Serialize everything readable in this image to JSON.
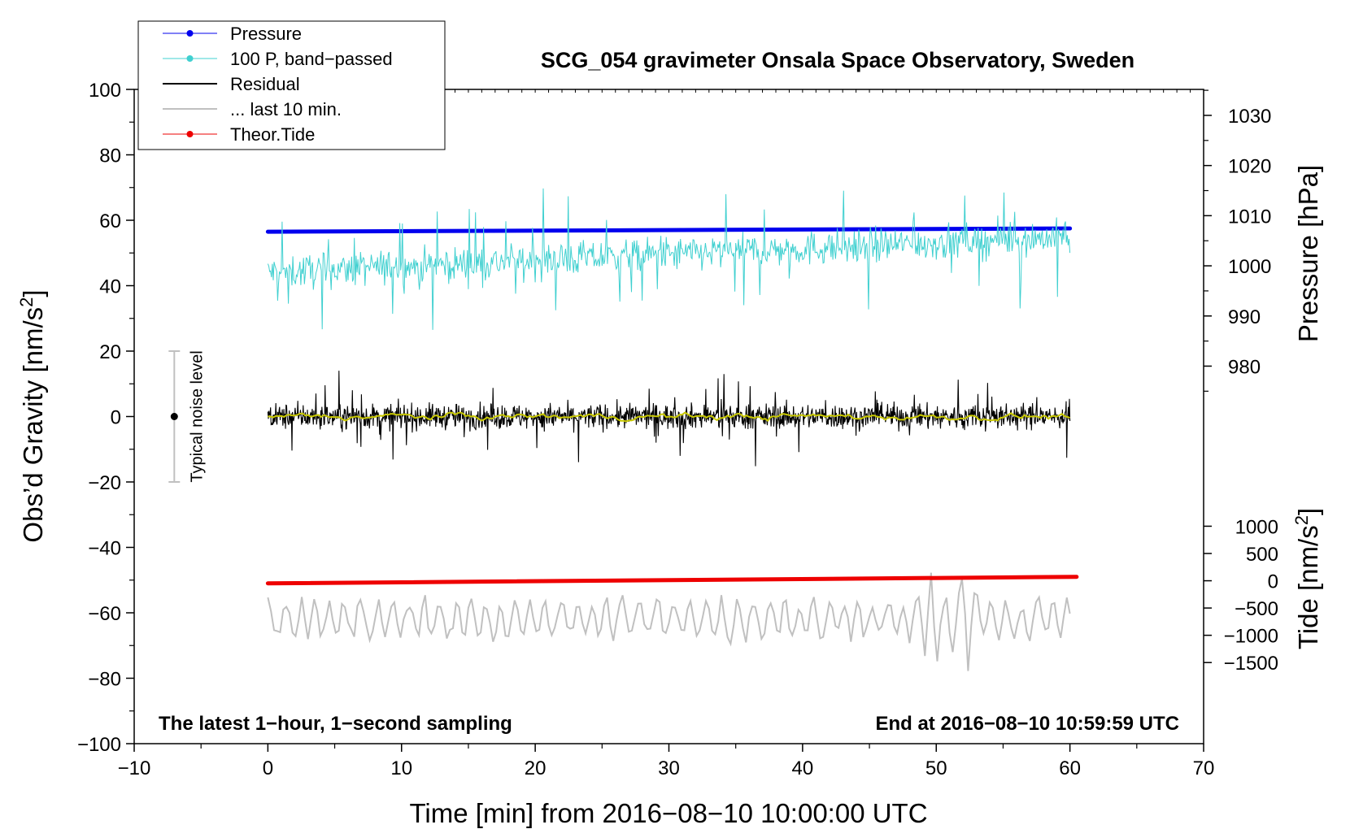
{
  "chart_data": {
    "type": "line",
    "title": "SCG_054 gravimeter Onsala Space Observatory, Sweden",
    "xlabel": "Time [min] from 2016−08−10 10:00:00 UTC",
    "ylabel_main": "Obs’d Gravity [nm/s",
    "ylabel_main_sup": "2",
    "ylabel_main_close": "]",
    "ylabel_pressure": "Pressure [hPa]",
    "ylabel_tide": "Tide [nm/s",
    "ylabel_tide_sup": "2",
    "ylabel_tide_close": "]",
    "xlim": [
      -10,
      70
    ],
    "ylim": [
      -100,
      100
    ],
    "x_ticks": [
      {
        "value": -10,
        "label": "−10"
      },
      {
        "value": 0,
        "label": "0"
      },
      {
        "value": 10,
        "label": "10"
      },
      {
        "value": 20,
        "label": "20"
      },
      {
        "value": 30,
        "label": "30"
      },
      {
        "value": 40,
        "label": "40"
      },
      {
        "value": 50,
        "label": "50"
      },
      {
        "value": 60,
        "label": "60"
      },
      {
        "value": 70,
        "label": "70"
      }
    ],
    "y_ticks": [
      {
        "value": 100,
        "label": "100"
      },
      {
        "value": 80,
        "label": "80"
      },
      {
        "value": 60,
        "label": "60"
      },
      {
        "value": 40,
        "label": "40"
      },
      {
        "value": 20,
        "label": "20"
      },
      {
        "value": 0,
        "label": "0"
      },
      {
        "value": -20,
        "label": "−20"
      },
      {
        "value": -40,
        "label": "−40"
      },
      {
        "value": -60,
        "label": "−60"
      },
      {
        "value": -80,
        "label": "−80"
      },
      {
        "value": -100,
        "label": "−100"
      }
    ],
    "pressure_axis": {
      "ref_hpa": 1000,
      "ref_gravity": 46.07,
      "gravity_per_hpa": 1.533,
      "ticks": [
        {
          "value": 980,
          "label": "980"
        },
        {
          "value": 990,
          "label": "990"
        },
        {
          "value": 1000,
          "label": "1000"
        },
        {
          "value": 1010,
          "label": "1010"
        },
        {
          "value": 1020,
          "label": "1020"
        },
        {
          "value": 1030,
          "label": "1030"
        }
      ]
    },
    "tide_axis": {
      "ref_tide": 0,
      "ref_gravity": -50.2,
      "gravity_per_unit": 0.01667,
      "ticks": [
        {
          "value": 1000,
          "label": "1000"
        },
        {
          "value": 500,
          "label": "500"
        },
        {
          "value": 0,
          "label": "0"
        },
        {
          "value": -500,
          "label": "−500"
        },
        {
          "value": -1000,
          "label": "−1000"
        },
        {
          "value": -1500,
          "label": "−1500"
        }
      ]
    },
    "series": [
      {
        "name": "Pressure",
        "color": "#0000ee",
        "style": "thick-line-dots",
        "x": [
          0,
          60
        ],
        "y": [
          56.5,
          57.5
        ]
      },
      {
        "name": "100 P, band−passed",
        "color": "#40d0d0",
        "style": "noisy",
        "x_start": 0,
        "x_end": 60,
        "baseline_start": 44,
        "baseline_end": 55,
        "amplitude": 7
      },
      {
        "name": "Residual",
        "color": "#000000",
        "style": "noisy",
        "x_start": 0,
        "x_end": 60,
        "baseline_start": 0,
        "baseline_end": 0,
        "amplitude": 5
      },
      {
        "name": "... last 10 min.",
        "color": "#c0c0c0",
        "style": "wavy",
        "x_start": 0,
        "x_end": 60,
        "baseline_start": -62,
        "baseline_end": -62,
        "amplitude": 6
      },
      {
        "name": "Theor.Tide",
        "color": "#ee0000",
        "style": "thick-line-dots",
        "x": [
          0,
          60.5
        ],
        "y": [
          -51,
          -49
        ]
      },
      {
        "name": "smoothed residual",
        "color": "#c8c800",
        "style": "smooth",
        "x_start": 0,
        "x_end": 60,
        "baseline_start": 0,
        "baseline_end": 0,
        "amplitude": 1.2
      }
    ],
    "noise_bar": {
      "x": -7,
      "center": 0,
      "low": -20,
      "high": 20,
      "label": "Typical noise level",
      "color": "#c0c0c0"
    },
    "annotations": {
      "bottom_left": "The latest 1−hour, 1−second sampling",
      "bottom_right": "End at 2016−08−10 10:59:59 UTC"
    },
    "legend": {
      "placement": "top-left",
      "entries": [
        "Pressure",
        "100 P, band−passed",
        "Residual",
        "... last 10 min.",
        "Theor.Tide"
      ]
    }
  }
}
